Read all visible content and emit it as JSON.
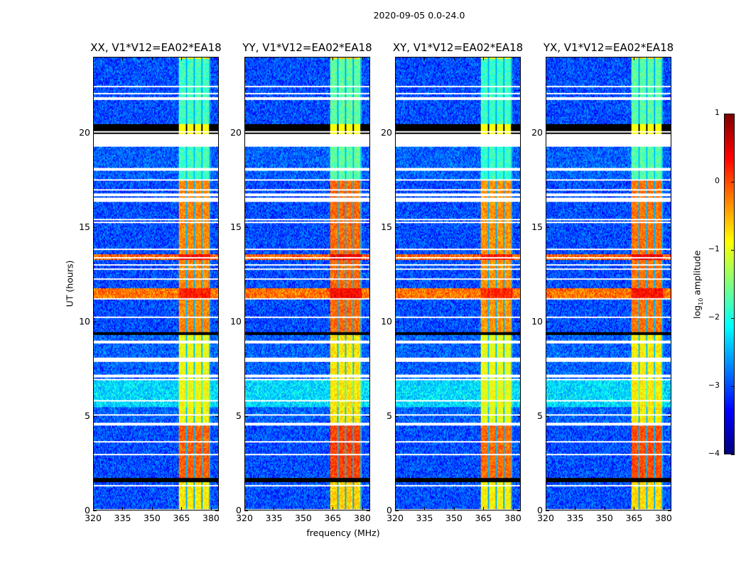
{
  "chart_data": {
    "type": "heatmap",
    "suptitle": "2020-09-05 0.0-24.0",
    "xlabel": "frequency (MHz)",
    "ylabel": "UT (hours)",
    "xlim": [
      320,
      384
    ],
    "ylim": [
      0,
      24
    ],
    "xticks": [
      320,
      335,
      350,
      365,
      380
    ],
    "yticks": [
      0,
      5,
      10,
      15,
      20
    ],
    "colorbar": {
      "label": "log10 amplitude",
      "label_main": "log",
      "label_sub": "10",
      "label_rest": " amplitude",
      "range": [
        -4,
        1
      ],
      "ticks": [
        -4,
        -3,
        -2,
        -1,
        0,
        1
      ],
      "colormap": "jet"
    },
    "rfi_band_mhz": [
      363.5,
      380
    ],
    "band_gaps_mhz": [
      367.5,
      371.5,
      375.5,
      379.5
    ],
    "panels": [
      {
        "title": "XX, V1*V12=EA02*EA18",
        "band_offset": 0
      },
      {
        "title": "YY, V1*V12=EA02*EA18",
        "band_offset": 0.15
      },
      {
        "title": "XY, V1*V12=EA02*EA18",
        "band_offset": -0.05
      },
      {
        "title": "YX, V1*V12=EA02*EA18",
        "band_offset": 0.1
      }
    ],
    "time_segments": [
      {
        "ut": [
          0,
          1.5
        ],
        "background": -3.0,
        "band": -0.8
      },
      {
        "ut": [
          1.5,
          1.75
        ],
        "flag": "black"
      },
      {
        "ut": [
          1.75,
          4.5
        ],
        "background": -3.0,
        "band": -0.1
      },
      {
        "ut": [
          4.5,
          4.65
        ],
        "flag": "white"
      },
      {
        "ut": [
          4.65,
          5.5
        ],
        "background": -2.9,
        "band": -0.9
      },
      {
        "ut": [
          5.5,
          7.0
        ],
        "background": -2.3,
        "band": -0.9
      },
      {
        "ut": [
          7.0,
          9.3
        ],
        "background": -2.9,
        "band": -0.9
      },
      {
        "ut": [
          9.3,
          9.5
        ],
        "flag": "black"
      },
      {
        "ut": [
          9.5,
          11.2
        ],
        "background": -3.0,
        "band": -0.3
      },
      {
        "ut": [
          11.2,
          11.8
        ],
        "background": -0.2,
        "band": 0.2
      },
      {
        "ut": [
          11.8,
          13.3
        ],
        "background": -3.0,
        "band": -0.3
      },
      {
        "ut": [
          13.3,
          13.6
        ],
        "background": -0.1,
        "band": 0.3
      },
      {
        "ut": [
          13.6,
          17.5
        ],
        "background": -3.0,
        "band": -0.3
      },
      {
        "ut": [
          17.5,
          19.4
        ],
        "background": -2.9,
        "band": -1.8
      },
      {
        "ut": [
          19.4,
          20.0
        ],
        "flag": "white"
      },
      {
        "ut": [
          20.0,
          20.5
        ],
        "flag": "black",
        "band": -0.9
      },
      {
        "ut": [
          20.5,
          24
        ],
        "background": -3.0,
        "band": -1.8
      }
    ]
  }
}
